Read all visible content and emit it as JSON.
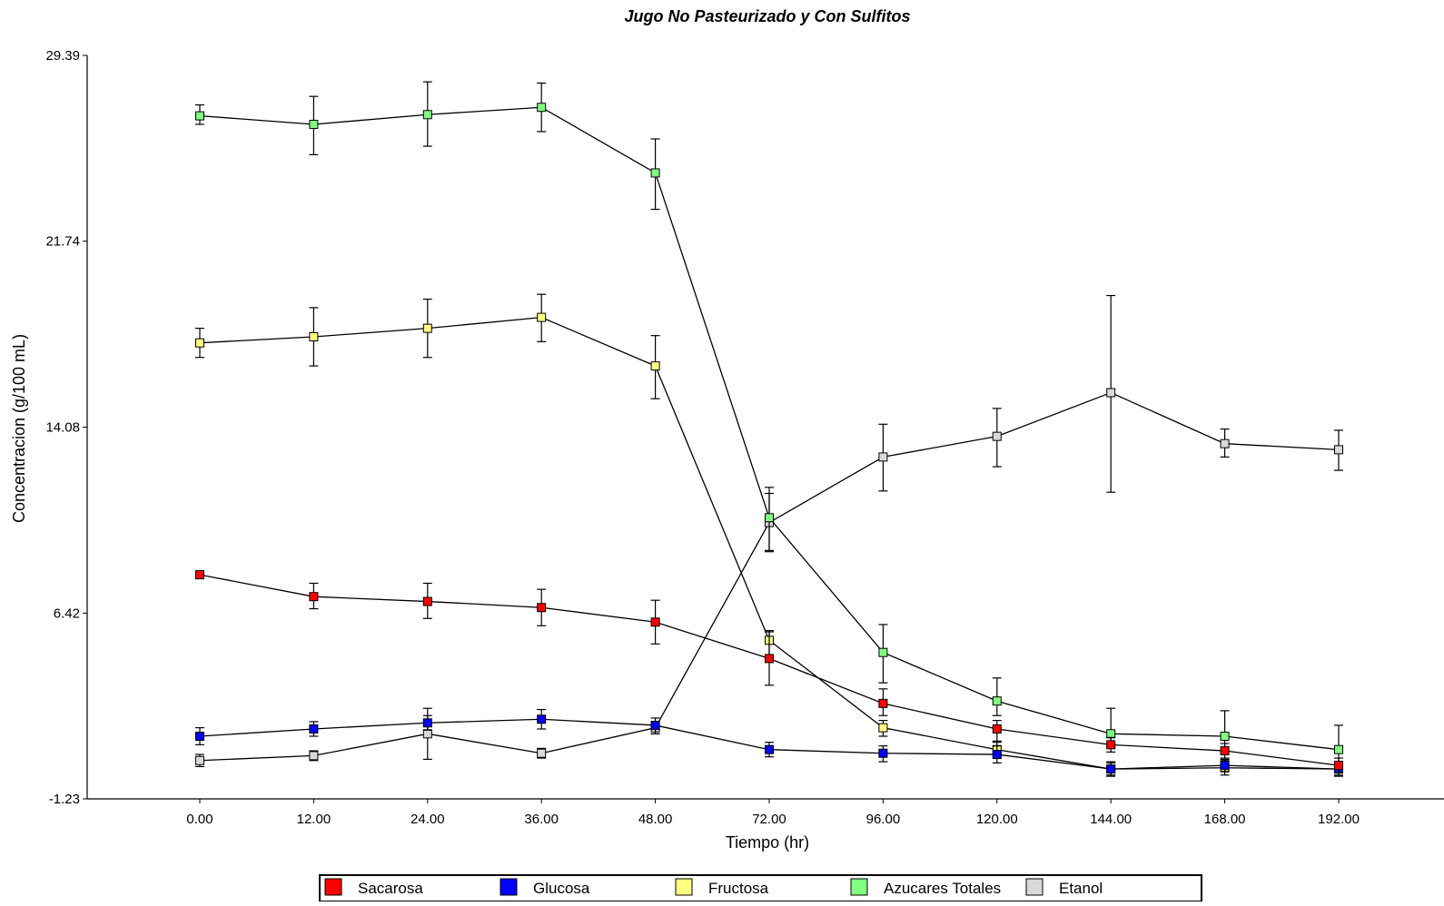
{
  "chart_data": {
    "type": "line",
    "title": "Jugo No Pasteurizado y Con Sulfitos",
    "xlabel": "Tiempo (hr)",
    "ylabel": "Concentracion (g/100 mL)",
    "x_tick_labels": [
      "0.00",
      "12.00",
      "24.00",
      "36.00",
      "48.00",
      "72.00",
      "96.00",
      "120.00",
      "144.00",
      "168.00",
      "192.00"
    ],
    "y_ticks": [
      -1.23,
      6.42,
      14.08,
      21.74,
      29.39
    ],
    "y_tick_labels": [
      "-1.23",
      "6.42",
      "14.08",
      "21.74",
      "29.39"
    ],
    "ylim": [
      -1.23,
      29.39
    ],
    "grid": false,
    "legend_position": "bottom",
    "series": [
      {
        "name": "Sacarosa",
        "color": "#ff0000",
        "values": [
          8.0,
          7.1,
          6.9,
          6.65,
          6.05,
          4.55,
          2.7,
          1.65,
          1.0,
          0.75,
          0.15
        ],
        "err_low": [
          0.0,
          0.5,
          0.7,
          0.75,
          0.9,
          1.1,
          0.5,
          0.5,
          0.3,
          0.3,
          0.3
        ],
        "err_high": [
          0.0,
          0.55,
          0.75,
          0.75,
          0.9,
          1.1,
          0.6,
          0.35,
          0.3,
          0.3,
          0.3
        ]
      },
      {
        "name": "Glucosa",
        "color": "#0000ff",
        "values": [
          1.35,
          1.65,
          1.9,
          2.05,
          1.8,
          0.8,
          0.65,
          0.6,
          0.0,
          0.15,
          0.0
        ],
        "err_low": [
          0.35,
          0.3,
          0.3,
          0.4,
          0.35,
          0.3,
          0.35,
          0.35,
          0.25,
          0.25,
          0.25
        ],
        "err_high": [
          0.35,
          0.3,
          0.3,
          0.4,
          0.3,
          0.3,
          0.3,
          0.35,
          0.25,
          0.25,
          0.25
        ]
      },
      {
        "name": "Fructosa",
        "color": "#ffff80",
        "values": [
          17.55,
          17.8,
          18.15,
          18.6,
          16.6,
          5.3,
          1.7,
          0.8,
          0.0,
          0.05,
          0.0
        ],
        "err_low": [
          0.6,
          1.2,
          1.2,
          1.0,
          1.35,
          0.8,
          0.35,
          0.3,
          0.3,
          0.3,
          0.3
        ],
        "err_high": [
          0.6,
          1.2,
          1.2,
          0.95,
          1.25,
          0.4,
          0.3,
          0.3,
          0.3,
          0.3,
          0.3
        ]
      },
      {
        "name": "Azucares Totales",
        "color": "#80ff80",
        "values": [
          26.9,
          26.55,
          26.95,
          27.25,
          24.55,
          10.35,
          4.8,
          2.8,
          1.45,
          1.35,
          0.8
        ],
        "err_low": [
          0.35,
          1.25,
          1.3,
          1.0,
          1.5,
          1.4,
          1.25,
          0.6,
          0.55,
          0.65,
          0.65
        ],
        "err_high": [
          0.45,
          1.15,
          1.35,
          1.0,
          1.4,
          1.25,
          1.15,
          0.95,
          1.05,
          1.05,
          1.0
        ]
      },
      {
        "name": "Etanol",
        "color": "#d9d9d9",
        "values": [
          0.35,
          0.55,
          1.45,
          0.65,
          1.7,
          10.15,
          12.85,
          13.7,
          15.5,
          13.4,
          13.15
        ],
        "err_low": [
          0.25,
          0.2,
          1.05,
          0.2,
          0.25,
          1.15,
          1.4,
          1.25,
          4.1,
          0.55,
          0.85
        ],
        "err_high": [
          0.25,
          0.2,
          1.05,
          0.2,
          0.25,
          1.2,
          1.35,
          1.15,
          4.0,
          0.6,
          0.8
        ]
      }
    ]
  }
}
